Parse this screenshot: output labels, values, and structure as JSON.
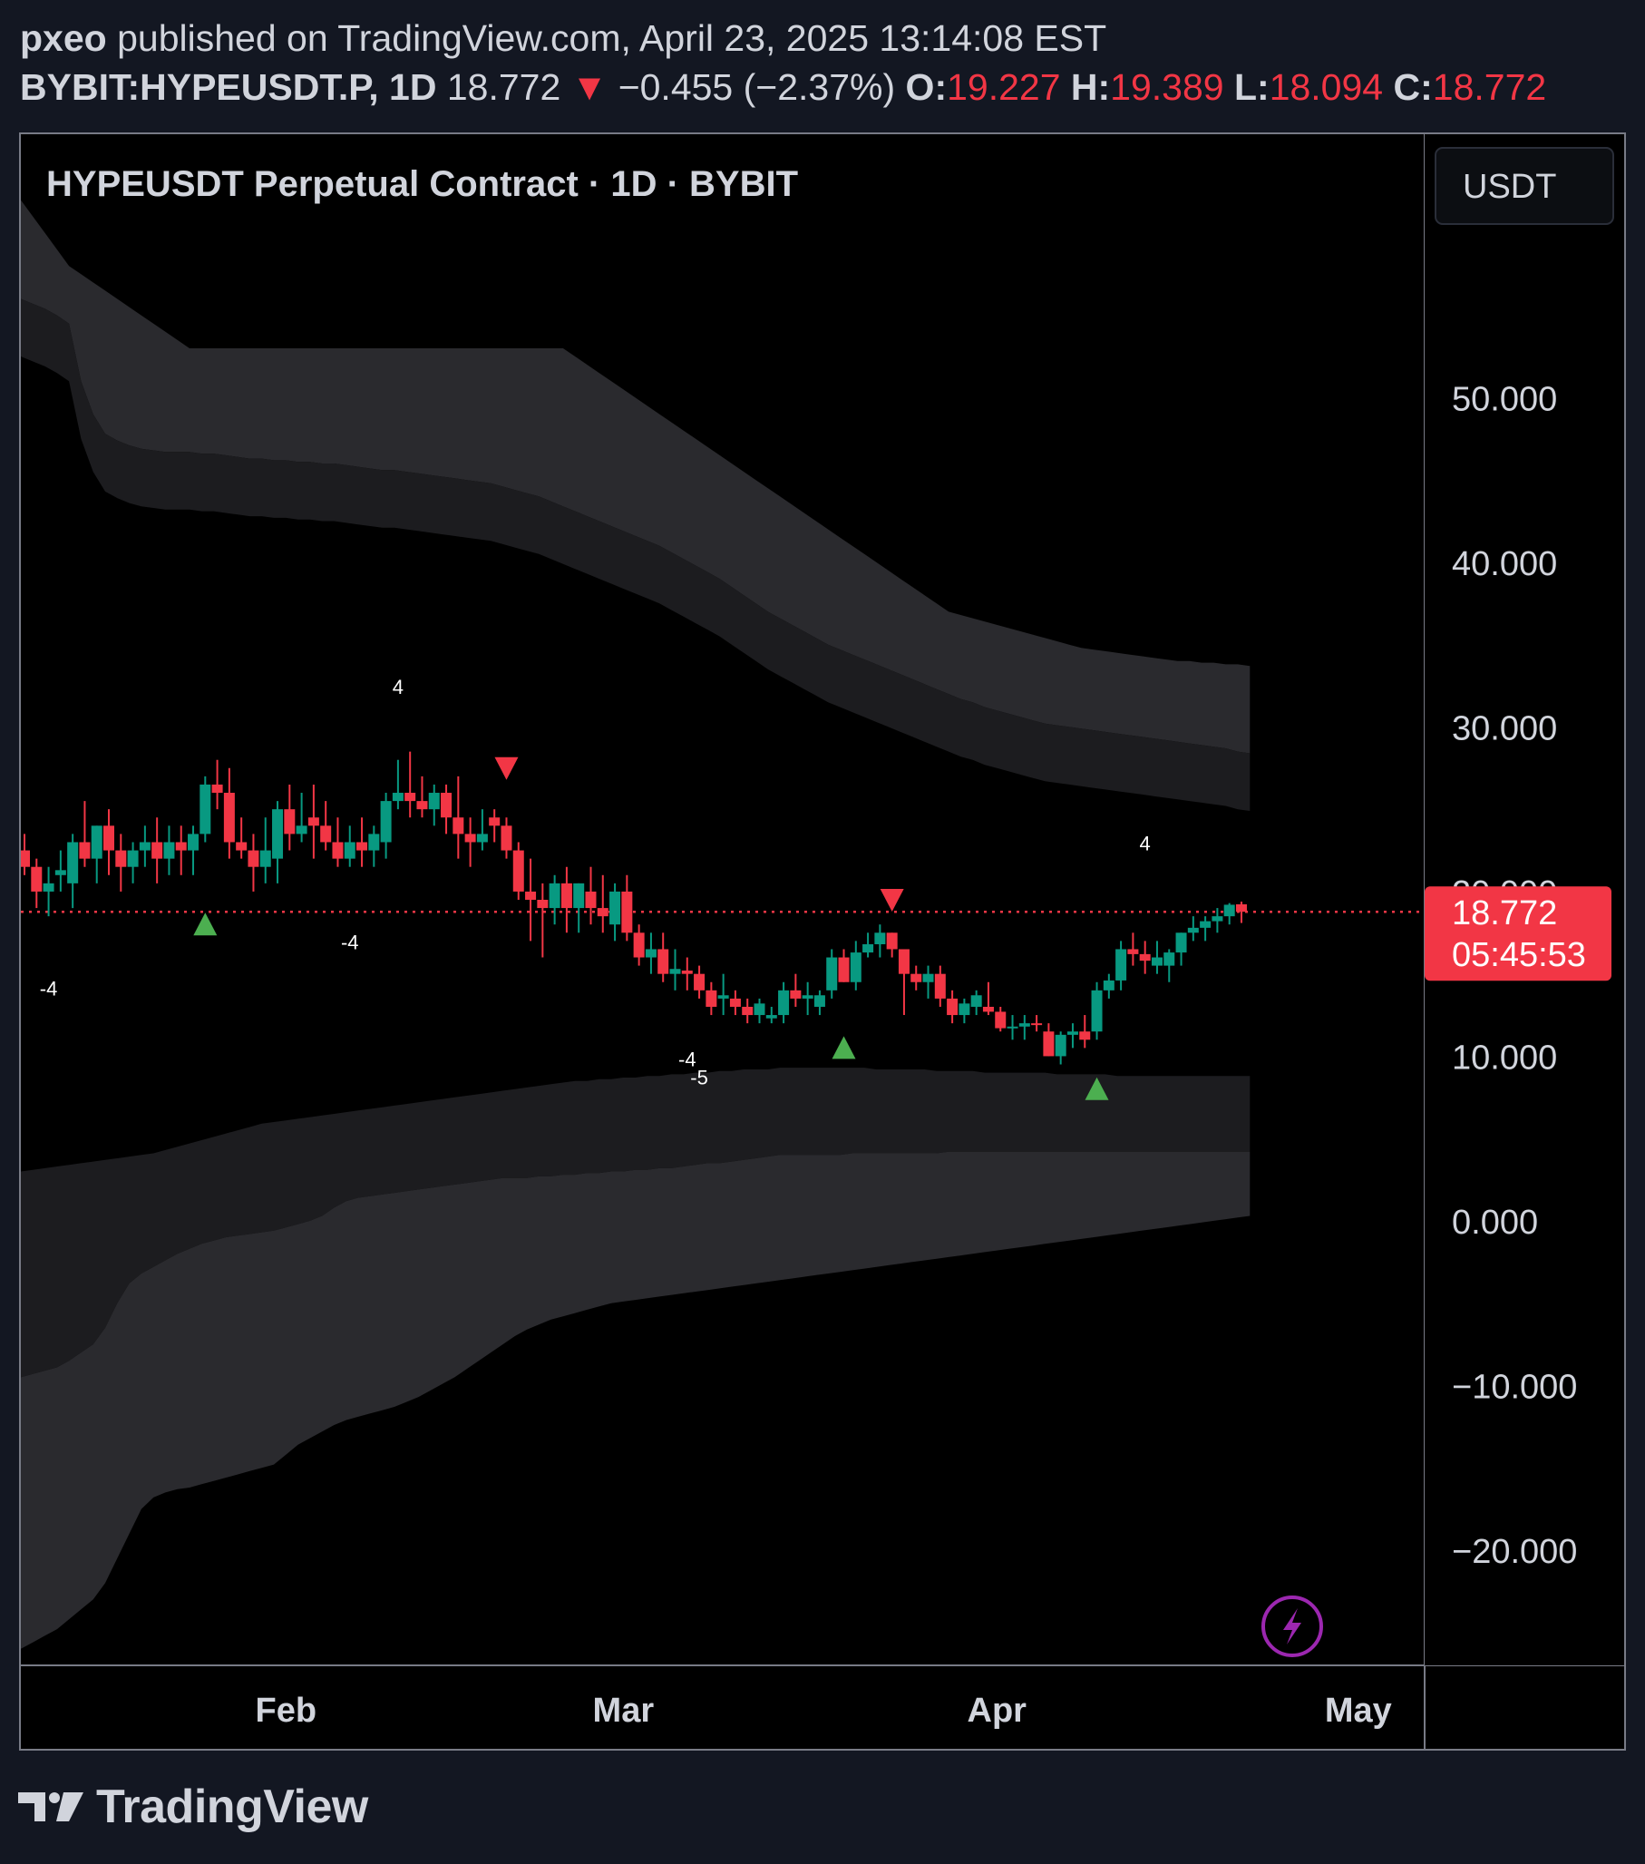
{
  "header": {
    "author": "pxeo",
    "published_text": "published on TradingView.com, April 23, 2025 13:14:08 EST",
    "symbol": "BYBIT:HYPEUSDT.P, 1D",
    "last_price": "18.772",
    "change_arrow": "▼",
    "change": "−0.455 (−2.37%)",
    "open_label": "O:",
    "open": "19.227",
    "high_label": "H:",
    "high": "19.389",
    "low_label": "L:",
    "low": "18.094",
    "close_label": "C:",
    "close": "18.772"
  },
  "chart_title": "HYPEUSDT Perpetual Contract · 1D · BYBIT",
  "currency_button": "USDT",
  "price_badge": {
    "price": "18.772",
    "countdown": "05:45:53"
  },
  "footer": {
    "logo_text": "TradingView"
  },
  "colors": {
    "up": "#089981",
    "down": "#f23645",
    "signal_up": "#4caf50",
    "band_outer": "#2a2a2e",
    "band_inner": "#1c1c1f",
    "bolt": "#9c27b0"
  },
  "icons": {
    "bolt": "lightning-bolt-icon",
    "logo": "tradingview-logo-icon"
  },
  "chart_data": {
    "type": "candlestick",
    "y_axis": {
      "min": -27,
      "max": 66,
      "ticks": [
        "50.000",
        "40.000",
        "30.000",
        "10.000",
        "0.000",
        "−10.000",
        "−20.000"
      ],
      "tick_values": [
        50,
        40,
        30,
        10,
        0,
        -10,
        -20
      ],
      "hidden_tick": "20.000"
    },
    "x_axis": {
      "start": "2025-01-10",
      "end": "2025-05-05",
      "labels": [
        {
          "text": "Feb",
          "date": "2025-02-01"
        },
        {
          "text": "Mar",
          "date": "2025-03-01"
        },
        {
          "text": "Apr",
          "date": "2025-04-01"
        },
        {
          "text": "May",
          "date": "2025-05-01"
        }
      ]
    },
    "last_price": 18.772,
    "candles_start_date": "2025-01-10",
    "candles": [
      [
        22.5,
        23.5,
        21.0,
        21.5
      ],
      [
        21.5,
        22.0,
        19.0,
        20.0
      ],
      [
        20.0,
        21.5,
        18.5,
        20.5
      ],
      [
        21.0,
        22.5,
        20.0,
        21.3
      ],
      [
        20.5,
        23.5,
        19.0,
        23.0
      ],
      [
        23.0,
        25.5,
        21.5,
        22.0
      ],
      [
        22.0,
        24.0,
        20.5,
        24.0
      ],
      [
        24.0,
        25.0,
        21.0,
        22.5
      ],
      [
        22.5,
        23.5,
        20.0,
        21.5
      ],
      [
        21.5,
        23.0,
        20.5,
        22.5
      ],
      [
        22.5,
        24.0,
        21.5,
        23.0
      ],
      [
        23.0,
        24.5,
        20.5,
        22.0
      ],
      [
        22.0,
        24.0,
        21.0,
        23.0
      ],
      [
        23.0,
        24.0,
        21.0,
        22.5
      ],
      [
        22.5,
        24.0,
        21.0,
        23.5
      ],
      [
        23.5,
        27.0,
        23.0,
        26.5
      ],
      [
        26.5,
        28.0,
        25.0,
        26.0
      ],
      [
        26.0,
        27.5,
        22.0,
        23.0
      ],
      [
        23.0,
        24.5,
        22.0,
        22.5
      ],
      [
        22.5,
        23.5,
        20.0,
        21.5
      ],
      [
        21.5,
        24.5,
        20.5,
        22.5
      ],
      [
        22.0,
        25.5,
        20.5,
        25.0
      ],
      [
        25.0,
        26.5,
        22.5,
        23.5
      ],
      [
        23.5,
        26.0,
        23.0,
        24.0
      ],
      [
        24.5,
        26.5,
        22.0,
        24.0
      ],
      [
        24.0,
        25.5,
        22.5,
        23.0
      ],
      [
        23.0,
        24.5,
        21.5,
        22.0
      ],
      [
        22.0,
        24.0,
        21.5,
        23.0
      ],
      [
        23.0,
        24.5,
        21.5,
        22.5
      ],
      [
        22.5,
        24.0,
        21.5,
        23.5
      ],
      [
        23.0,
        26.0,
        22.0,
        25.5
      ],
      [
        25.5,
        28.0,
        25.0,
        26.0
      ],
      [
        26.0,
        28.5,
        24.5,
        25.5
      ],
      [
        25.5,
        27.0,
        24.5,
        25.0
      ],
      [
        25.0,
        26.5,
        24.0,
        26.0
      ],
      [
        26.0,
        26.5,
        23.5,
        24.5
      ],
      [
        24.5,
        27.0,
        22.0,
        23.5
      ],
      [
        23.5,
        24.5,
        21.5,
        23.0
      ],
      [
        23.0,
        25.0,
        22.5,
        23.5
      ],
      [
        24.5,
        25.0,
        23.0,
        24.0
      ],
      [
        24.0,
        24.5,
        22.0,
        22.5
      ],
      [
        22.5,
        23.0,
        19.5,
        20.0
      ],
      [
        20.0,
        22.0,
        17.0,
        19.5
      ],
      [
        19.5,
        20.5,
        16.0,
        19.0
      ],
      [
        19.0,
        21.0,
        18.0,
        20.5
      ],
      [
        20.5,
        21.5,
        17.5,
        19.0
      ],
      [
        19.0,
        20.5,
        17.5,
        20.5
      ],
      [
        20.0,
        21.5,
        18.0,
        19.0
      ],
      [
        19.0,
        21.0,
        17.5,
        18.5
      ],
      [
        18.0,
        20.5,
        17.0,
        20.0
      ],
      [
        20.0,
        21.0,
        17.0,
        17.5
      ],
      [
        17.5,
        18.0,
        15.5,
        16.0
      ],
      [
        16.0,
        17.5,
        15.0,
        16.5
      ],
      [
        16.5,
        17.5,
        14.5,
        15.0
      ],
      [
        15.0,
        16.5,
        14.0,
        15.3
      ],
      [
        15.2,
        16.0,
        14.0,
        15.0
      ],
      [
        15.0,
        15.5,
        13.5,
        14.0
      ],
      [
        14.0,
        14.5,
        12.5,
        13.0
      ],
      [
        13.5,
        15.0,
        12.5,
        13.7
      ],
      [
        13.5,
        14.0,
        12.5,
        13.0
      ],
      [
        13.0,
        13.5,
        12.0,
        12.5
      ],
      [
        12.5,
        13.5,
        12.0,
        13.2
      ],
      [
        12.3,
        13.0,
        12.0,
        12.5
      ],
      [
        12.5,
        14.5,
        12.0,
        14.0
      ],
      [
        14.0,
        15.0,
        13.0,
        13.5
      ],
      [
        13.5,
        14.5,
        12.5,
        13.7
      ],
      [
        13.0,
        14.0,
        12.5,
        13.7
      ],
      [
        14.0,
        16.5,
        13.5,
        16.0
      ],
      [
        16.0,
        16.5,
        14.5,
        14.5
      ],
      [
        14.5,
        17.0,
        14.0,
        16.3
      ],
      [
        16.3,
        17.5,
        16.0,
        16.8
      ],
      [
        16.8,
        18.0,
        16.0,
        17.5
      ],
      [
        17.5,
        17.5,
        16.0,
        16.5
      ],
      [
        16.5,
        16.5,
        12.5,
        15.0
      ],
      [
        15.0,
        15.5,
        14.0,
        14.5
      ],
      [
        14.5,
        15.5,
        13.5,
        15.0
      ],
      [
        15.0,
        15.5,
        13.0,
        13.5
      ],
      [
        13.5,
        14.0,
        12.0,
        12.5
      ],
      [
        12.5,
        13.5,
        12.0,
        13.2
      ],
      [
        13.0,
        14.0,
        12.5,
        13.7
      ],
      [
        13.0,
        14.5,
        12.5,
        12.7
      ],
      [
        12.7,
        13.0,
        11.5,
        11.7
      ],
      [
        11.7,
        12.5,
        11.0,
        11.8
      ],
      [
        11.8,
        12.5,
        11.0,
        12.0
      ],
      [
        12.0,
        12.5,
        11.5,
        11.9
      ],
      [
        11.5,
        12.0,
        10.0,
        10.0
      ],
      [
        10.0,
        11.5,
        9.5,
        11.3
      ],
      [
        11.3,
        12.0,
        10.5,
        11.5
      ],
      [
        11.5,
        12.5,
        10.5,
        11.0
      ],
      [
        11.5,
        14.5,
        11.0,
        14.0
      ],
      [
        14.0,
        15.0,
        13.5,
        14.6
      ],
      [
        14.6,
        17.0,
        14.0,
        16.5
      ],
      [
        16.5,
        17.5,
        15.5,
        16.2
      ],
      [
        16.2,
        17.0,
        15.0,
        15.8
      ],
      [
        15.5,
        17.0,
        15.0,
        16.0
      ],
      [
        15.5,
        16.5,
        14.5,
        16.3
      ],
      [
        16.3,
        17.5,
        15.5,
        17.5
      ],
      [
        17.5,
        18.5,
        17.0,
        17.8
      ],
      [
        17.8,
        18.5,
        17.0,
        18.2
      ],
      [
        18.2,
        19.0,
        17.5,
        18.5
      ],
      [
        18.5,
        19.3,
        18.0,
        19.2
      ],
      [
        19.227,
        19.389,
        18.094,
        18.772
      ]
    ],
    "bands": {
      "start_date": "2025-01-10",
      "outer_upper": [
        56,
        55.7,
        55.4,
        55,
        54.5,
        51,
        49,
        47.8,
        47.4,
        47.1,
        46.9,
        46.8,
        46.7,
        46.7,
        46.7,
        46.6,
        46.6,
        46.5,
        46.4,
        46.3,
        46.3,
        46.2,
        46.2,
        46.1,
        46.1,
        46.0,
        46.0,
        45.9,
        45.8,
        45.7,
        45.6,
        45.6,
        45.5,
        45.4,
        45.3,
        45.2,
        45.1,
        45.0,
        44.9,
        44.8,
        44.6,
        44.4,
        44.2,
        44.0,
        43.7,
        43.4,
        43.1,
        42.8,
        42.5,
        42.2,
        41.9,
        41.6,
        41.3,
        41.0,
        40.6,
        40.2,
        39.8,
        39.4,
        39.0,
        38.5,
        38.0,
        37.5,
        37.0,
        36.6,
        36.2,
        35.8,
        35.4,
        35.0,
        34.7,
        34.4,
        34.1,
        33.8,
        33.5,
        33.2,
        32.9,
        32.6,
        32.3,
        32.0,
        31.7,
        31.5,
        31.2,
        31.0,
        30.8,
        30.6,
        30.4,
        30.2,
        30.1,
        30.0,
        29.9,
        29.8,
        29.7,
        29.6,
        29.5,
        29.4,
        29.3,
        29.2,
        29.1,
        29.0,
        28.9,
        28.8,
        28.7,
        28.5,
        28.4
      ],
      "inner_upper": [
        62,
        61,
        60,
        59,
        58,
        57.5,
        57,
        56.5,
        56,
        55.5,
        55,
        54.5,
        54,
        53.5,
        53,
        53,
        53,
        53,
        53,
        53,
        53,
        53,
        53,
        53,
        53,
        53,
        53,
        53,
        53,
        53,
        53,
        53,
        53,
        53,
        53,
        53,
        53,
        53,
        53,
        53,
        53,
        53,
        53,
        53,
        53,
        53,
        52.5,
        52,
        51.5,
        51,
        50.5,
        50,
        49.5,
        49,
        48.5,
        48,
        47.5,
        47,
        46.5,
        46,
        45.5,
        45,
        44.5,
        44,
        43.5,
        43,
        42.5,
        42,
        41.5,
        41,
        40.5,
        40,
        39.5,
        39,
        38.5,
        38,
        37.5,
        37,
        36.8,
        36.6,
        36.4,
        36.2,
        36.0,
        35.8,
        35.6,
        35.4,
        35.2,
        35.0,
        34.8,
        34.7,
        34.6,
        34.5,
        34.4,
        34.3,
        34.2,
        34.1,
        34.0,
        34.0,
        33.9,
        33.9,
        33.8,
        33.8,
        33.7
      ],
      "inner_lower": [
        3,
        3.1,
        3.2,
        3.3,
        3.4,
        3.5,
        3.6,
        3.7,
        3.8,
        3.9,
        4.0,
        4.1,
        4.3,
        4.5,
        4.7,
        4.9,
        5.1,
        5.3,
        5.5,
        5.7,
        5.9,
        6.0,
        6.1,
        6.2,
        6.3,
        6.4,
        6.5,
        6.6,
        6.7,
        6.8,
        6.9,
        7.0,
        7.1,
        7.2,
        7.3,
        7.4,
        7.5,
        7.6,
        7.7,
        7.8,
        7.9,
        8.0,
        8.1,
        8.2,
        8.3,
        8.4,
        8.5,
        8.5,
        8.6,
        8.6,
        8.7,
        8.7,
        8.8,
        8.8,
        8.9,
        8.9,
        9.0,
        9.0,
        9.1,
        9.1,
        9.2,
        9.2,
        9.2,
        9.3,
        9.3,
        9.3,
        9.3,
        9.3,
        9.3,
        9.3,
        9.3,
        9.2,
        9.2,
        9.2,
        9.2,
        9.2,
        9.1,
        9.1,
        9.1,
        9.1,
        9.0,
        9.0,
        9.0,
        9.0,
        9.0,
        9.0,
        8.9,
        8.9,
        8.9,
        8.9,
        8.9,
        8.8,
        8.8,
        8.8,
        8.8,
        8.8,
        8.8,
        8.8,
        8.8,
        8.8,
        8.8,
        8.8,
        8.8
      ],
      "outer_lower": [
        -9.5,
        -9.3,
        -9.1,
        -8.9,
        -8.5,
        -8.0,
        -7.5,
        -6.5,
        -5.0,
        -3.8,
        -3.2,
        -2.8,
        -2.4,
        -2.0,
        -1.7,
        -1.4,
        -1.2,
        -1.0,
        -0.9,
        -0.8,
        -0.7,
        -0.6,
        -0.4,
        -0.2,
        0.0,
        0.3,
        0.8,
        1.2,
        1.4,
        1.5,
        1.6,
        1.7,
        1.8,
        1.9,
        2.0,
        2.1,
        2.2,
        2.3,
        2.4,
        2.5,
        2.6,
        2.6,
        2.6,
        2.7,
        2.7,
        2.8,
        2.8,
        2.9,
        2.9,
        3.0,
        3.0,
        3.1,
        3.1,
        3.2,
        3.2,
        3.3,
        3.4,
        3.5,
        3.5,
        3.6,
        3.7,
        3.8,
        3.9,
        4.0,
        4.0,
        4.0,
        4.0,
        4.0,
        4.0,
        4.1,
        4.1,
        4.1,
        4.1,
        4.1,
        4.1,
        4.1,
        4.1,
        4.2,
        4.2,
        4.2,
        4.2,
        4.2,
        4.2,
        4.2,
        4.2,
        4.2,
        4.2,
        4.2,
        4.2,
        4.2,
        4.2,
        4.2,
        4.2,
        4.2,
        4.2,
        4.2,
        4.2,
        4.2,
        4.2,
        4.2,
        4.2,
        4.2,
        4.2
      ],
      "outer_lower_far": [
        -26,
        -25.6,
        -25.2,
        -24.8,
        -24.2,
        -23.6,
        -23.0,
        -22.0,
        -20.5,
        -19.0,
        -17.5,
        -16.8,
        -16.5,
        -16.3,
        -16.2,
        -16.0,
        -15.8,
        -15.6,
        -15.4,
        -15.2,
        -15.0,
        -14.8,
        -14.2,
        -13.6,
        -13.2,
        -12.8,
        -12.4,
        -12.1,
        -11.9,
        -11.7,
        -11.5,
        -11.3,
        -11.0,
        -10.7,
        -10.3,
        -9.9,
        -9.5,
        -9.0,
        -8.5,
        -8.0,
        -7.5,
        -7.0,
        -6.6,
        -6.3,
        -6.0,
        -5.8,
        -5.6,
        -5.4,
        -5.2,
        -5.0,
        -4.9,
        -4.8,
        -4.7,
        -4.6,
        -4.5,
        -4.4,
        -4.3,
        -4.2,
        -4.1,
        -4.0,
        -3.9,
        -3.8,
        -3.7,
        -3.6,
        -3.5,
        -3.4,
        -3.3,
        -3.2,
        -3.1,
        -3.0,
        -2.9,
        -2.8,
        -2.7,
        -2.6,
        -2.5,
        -2.4,
        -2.3,
        -2.2,
        -2.1,
        -2.0,
        -1.9,
        -1.8,
        -1.7,
        -1.6,
        -1.5,
        -1.4,
        -1.3,
        -1.2,
        -1.1,
        -1.0,
        -0.9,
        -0.8,
        -0.7,
        -0.6,
        -0.5,
        -0.4,
        -0.3,
        -0.2,
        -0.1,
        0.0,
        0.1,
        0.2,
        0.3
      ]
    },
    "signals": [
      {
        "type": "up",
        "index": 15,
        "price": 18.0
      },
      {
        "type": "down",
        "index": 40,
        "price": 27.5
      },
      {
        "type": "up",
        "index": 68,
        "price": 10.5
      },
      {
        "type": "down",
        "index": 72,
        "price": 19.5
      },
      {
        "type": "up",
        "index": 89,
        "price": 8.0
      }
    ],
    "labels": [
      {
        "text": "4",
        "index": 31,
        "price": 32.0
      },
      {
        "text": "-4",
        "index": 27,
        "price": 16.5
      },
      {
        "text": "-4",
        "index": 2,
        "price": 13.7
      },
      {
        "text": "-4",
        "index": 55,
        "price": 9.4
      },
      {
        "text": "-5",
        "index": 56,
        "price": 8.3
      },
      {
        "text": "4",
        "index": 93,
        "price": 22.5
      }
    ]
  }
}
